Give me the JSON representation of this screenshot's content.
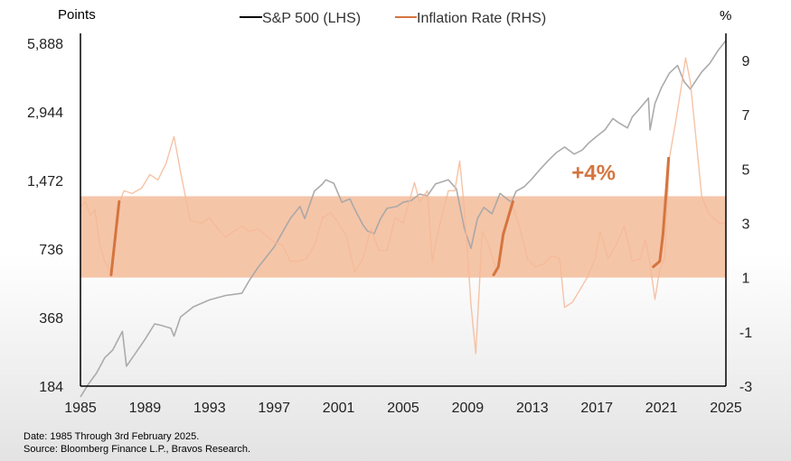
{
  "chart_data": {
    "type": "line",
    "title": "",
    "left_axis": {
      "label": "Points",
      "scale": "log",
      "range": [
        184,
        6500
      ],
      "ticks": [
        184,
        368,
        736,
        1472,
        2944,
        5888
      ],
      "tick_labels": [
        "184",
        "368",
        "736",
        "1,472",
        "2,944",
        "5,888"
      ]
    },
    "right_axis": {
      "label": "%",
      "range": [
        -3,
        10
      ],
      "ticks": [
        -3,
        -1,
        1,
        3,
        5,
        7,
        9
      ],
      "tick_labels": [
        "-3",
        "-1",
        "1",
        "3",
        "5",
        "7",
        "9"
      ]
    },
    "x_axis": {
      "range": [
        1985,
        2025
      ],
      "ticks": [
        1985,
        1989,
        1993,
        1997,
        2001,
        2005,
        2009,
        2013,
        2017,
        2021,
        2025
      ],
      "tick_labels": [
        "1985",
        "1989",
        "1993",
        "1997",
        "2001",
        "2005",
        "2009",
        "2013",
        "2017",
        "2021",
        "2025"
      ]
    },
    "legend_position": "top-center",
    "grid": false,
    "series": [
      {
        "name": "S&P 500 (LHS)",
        "axis": "left",
        "color": "#a6a6a6",
        "legend_color": "#000000",
        "x": [
          1985.0,
          1985.5,
          1986.0,
          1986.5,
          1987.0,
          1987.6,
          1987.85,
          1988.5,
          1989.0,
          1989.6,
          1990.0,
          1990.6,
          1990.8,
          1991.2,
          1992.0,
          1993.0,
          1994.0,
          1995.0,
          1995.5,
          1996.0,
          1997.0,
          1998.0,
          1998.6,
          1998.9,
          1999.5,
          2000.0,
          2000.2,
          2000.7,
          2001.2,
          2001.7,
          2002.0,
          2002.5,
          2002.8,
          2003.2,
          2003.6,
          2004.0,
          2004.6,
          2005.0,
          2005.5,
          2006.0,
          2006.5,
          2007.0,
          2007.8,
          2008.3,
          2008.8,
          2009.2,
          2009.6,
          2010.0,
          2010.5,
          2011.0,
          2011.7,
          2012.0,
          2012.5,
          2013.0,
          2013.5,
          2014.0,
          2014.5,
          2015.0,
          2015.6,
          2016.1,
          2016.5,
          2017.0,
          2017.5,
          2018.0,
          2018.3,
          2018.9,
          2019.2,
          2019.5,
          2020.0,
          2020.2,
          2020.3,
          2020.6,
          2021.0,
          2021.5,
          2022.0,
          2022.4,
          2022.8,
          2023.0,
          2023.5,
          2024.0,
          2024.5,
          2025.0
        ],
        "values": [
          165,
          188,
          210,
          245,
          265,
          320,
          225,
          262,
          295,
          345,
          340,
          330,
          305,
          370,
          410,
          440,
          460,
          470,
          540,
          610,
          750,
          1000,
          1130,
          1000,
          1320,
          1420,
          1480,
          1430,
          1180,
          1220,
          1100,
          940,
          880,
          860,
          1000,
          1110,
          1130,
          1180,
          1200,
          1280,
          1260,
          1420,
          1480,
          1350,
          900,
          740,
          1000,
          1120,
          1050,
          1290,
          1180,
          1320,
          1380,
          1500,
          1650,
          1800,
          1950,
          2060,
          1920,
          2000,
          2150,
          2300,
          2450,
          2750,
          2650,
          2500,
          2800,
          2950,
          3250,
          3380,
          2450,
          3200,
          3750,
          4350,
          4700,
          4000,
          3700,
          3900,
          4400,
          4800,
          5450,
          6050
        ]
      },
      {
        "name": "Inflation Rate (RHS)",
        "axis": "right",
        "color": "#f5b896",
        "legend_color": "#d4753f",
        "x": [
          1985.0,
          1985.3,
          1985.6,
          1985.9,
          1986.2,
          1986.5,
          1986.9,
          1987.3,
          1987.7,
          1988.2,
          1988.8,
          1989.3,
          1989.8,
          1990.3,
          1990.8,
          1991.2,
          1991.8,
          1992.5,
          1993.0,
          1993.5,
          1994.0,
          1995.0,
          1995.5,
          1996.0,
          1997.0,
          1997.5,
          1998.0,
          1998.5,
          1999.0,
          1999.5,
          2000.0,
          2000.5,
          2001.0,
          2001.5,
          2002.0,
          2002.5,
          2003.0,
          2003.5,
          2004.0,
          2004.5,
          2005.0,
          2005.7,
          2006.0,
          2006.5,
          2006.8,
          2007.2,
          2007.8,
          2008.2,
          2008.5,
          2008.8,
          2009.2,
          2009.5,
          2009.9,
          2010.3,
          2010.8,
          2011.2,
          2011.7,
          2012.2,
          2012.7,
          2013.2,
          2013.7,
          2014.2,
          2014.7,
          2015.0,
          2015.5,
          2015.9,
          2016.4,
          2016.9,
          2017.2,
          2017.7,
          2018.2,
          2018.7,
          2019.2,
          2019.7,
          2020.0,
          2020.3,
          2020.6,
          2020.9,
          2021.2,
          2021.5,
          2021.9,
          2022.2,
          2022.5,
          2022.8,
          2023.1,
          2023.5,
          2023.9,
          2024.2,
          2024.6,
          2025.0
        ],
        "values": [
          3.6,
          3.8,
          3.3,
          3.5,
          2.2,
          1.6,
          1.2,
          3.6,
          4.2,
          4.1,
          4.3,
          4.8,
          4.6,
          5.2,
          6.2,
          4.9,
          3.1,
          3.0,
          3.2,
          2.8,
          2.5,
          2.9,
          2.7,
          2.8,
          2.3,
          2.2,
          1.6,
          1.6,
          1.7,
          2.2,
          3.2,
          3.4,
          3.0,
          2.5,
          1.2,
          1.7,
          2.8,
          2.0,
          2.0,
          3.2,
          3.0,
          4.5,
          3.8,
          4.2,
          1.6,
          2.8,
          4.2,
          4.2,
          5.3,
          3.5,
          0.0,
          -1.8,
          2.7,
          2.2,
          1.2,
          2.6,
          3.8,
          2.9,
          1.7,
          1.4,
          1.5,
          1.8,
          1.7,
          -0.1,
          0.1,
          0.5,
          1.0,
          1.7,
          2.7,
          1.7,
          2.2,
          2.9,
          1.6,
          1.7,
          2.4,
          1.5,
          0.2,
          1.3,
          1.7,
          5.4,
          6.8,
          7.9,
          9.1,
          8.2,
          6.4,
          4.0,
          3.4,
          3.2,
          3.0,
          3.0
        ]
      }
    ],
    "band": {
      "from": 1,
      "to": 4,
      "axis": "right",
      "color": "#f5c5a8"
    },
    "highlights": [
      {
        "x": [
          1986.9,
          1987.4
        ],
        "values": [
          1.1,
          3.8
        ]
      },
      {
        "x": [
          2010.6,
          2010.9,
          2011.2,
          2011.6,
          2011.8
        ],
        "values": [
          1.1,
          1.4,
          2.6,
          3.4,
          3.8
        ]
      },
      {
        "x": [
          2020.5,
          2020.9,
          2021.1,
          2021.3,
          2021.45
        ],
        "values": [
          1.4,
          1.6,
          2.6,
          4.2,
          5.4
        ]
      }
    ],
    "annotation": {
      "text": "+4%",
      "x": 2016.8,
      "value": 4.6,
      "color": "#d4753f"
    }
  },
  "footnotes": {
    "date": "Date: 1985 Through 3rd February 2025.",
    "source": "Source: Bloomberg Finance L.P., Bravos Research."
  }
}
